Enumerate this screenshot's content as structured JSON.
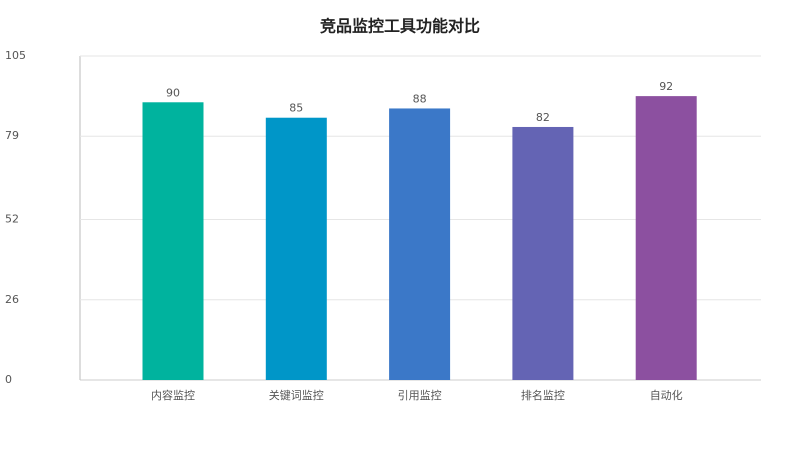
{
  "chart_data": {
    "type": "bar",
    "title": "竞品监控工具功能对比",
    "categories": [
      "内容监控",
      "关键词监控",
      "引用监控",
      "排名监控",
      "自动化"
    ],
    "values": [
      90,
      85,
      88,
      82,
      92
    ],
    "colors": [
      "#00b39e",
      "#0096c8",
      "#3b78c8",
      "#6464b4",
      "#8c50a0"
    ],
    "ylim": [
      0,
      105
    ],
    "yticks": [
      0,
      26,
      52,
      79,
      105
    ],
    "grid": true
  }
}
